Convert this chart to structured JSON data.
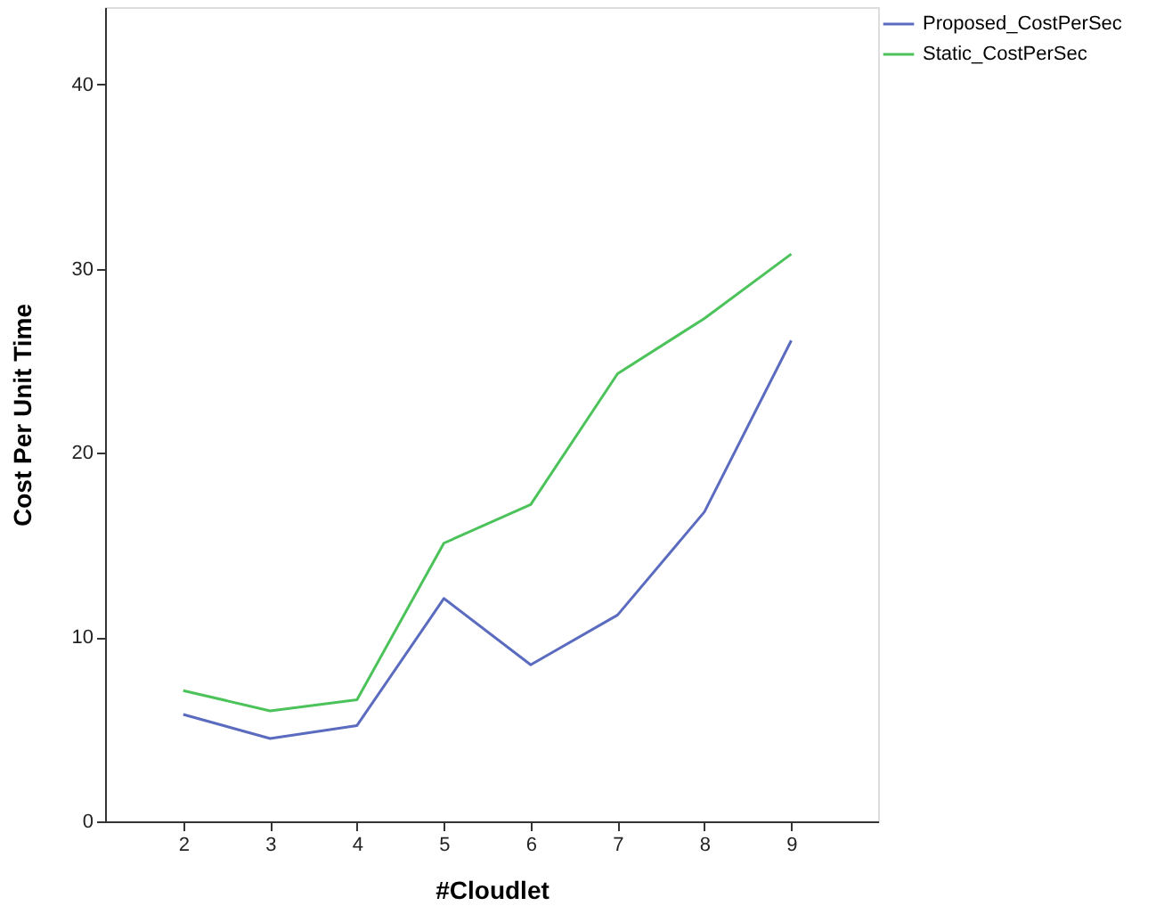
{
  "chart_data": {
    "type": "line",
    "xlabel": "#Cloudlet",
    "ylabel": "Cost Per Unit Time",
    "x": [
      2,
      3,
      4,
      5,
      6,
      7,
      8,
      9
    ],
    "series": [
      {
        "name": "Proposed_CostPerSec",
        "color": "#5b6bbf",
        "values": [
          5.8,
          4.5,
          5.2,
          12.1,
          8.5,
          11.2,
          16.8,
          26.1
        ]
      },
      {
        "name": "Static_CostPerSec",
        "color": "#4cc35a",
        "values": [
          7.1,
          6.0,
          6.6,
          15.1,
          17.2,
          24.3,
          27.3,
          30.8
        ]
      }
    ],
    "xlim": [
      1.1,
      10
    ],
    "ylim": [
      0,
      44.2
    ],
    "xticks": [
      2,
      3,
      4,
      5,
      6,
      7,
      8,
      9
    ],
    "yticks": [
      0,
      10,
      20,
      30,
      40
    ],
    "grid": false,
    "legend": "top right",
    "marker": "none",
    "line_style": "solid"
  }
}
